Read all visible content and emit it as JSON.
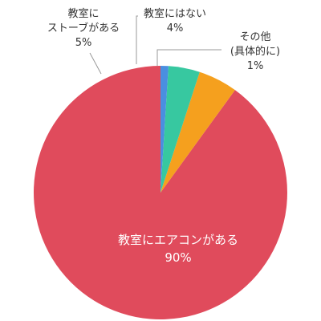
{
  "chart_data": {
    "type": "pie",
    "title": "",
    "slices": [
      {
        "label": [
          "教室にエアコンがある"
        ],
        "pct_label": "90%",
        "value": 90,
        "color": "#e04b5c"
      },
      {
        "label": [
          "教室に",
          "ストーブがある"
        ],
        "pct_label": "5%",
        "value": 5,
        "color": "#f5a01e"
      },
      {
        "label": [
          "教室にはない"
        ],
        "pct_label": "4%",
        "value": 4,
        "color": "#37c8a0"
      },
      {
        "label": [
          "その他",
          "(具体的に)"
        ],
        "pct_label": "1%",
        "value": 1,
        "color": "#4a8fe0"
      }
    ]
  }
}
